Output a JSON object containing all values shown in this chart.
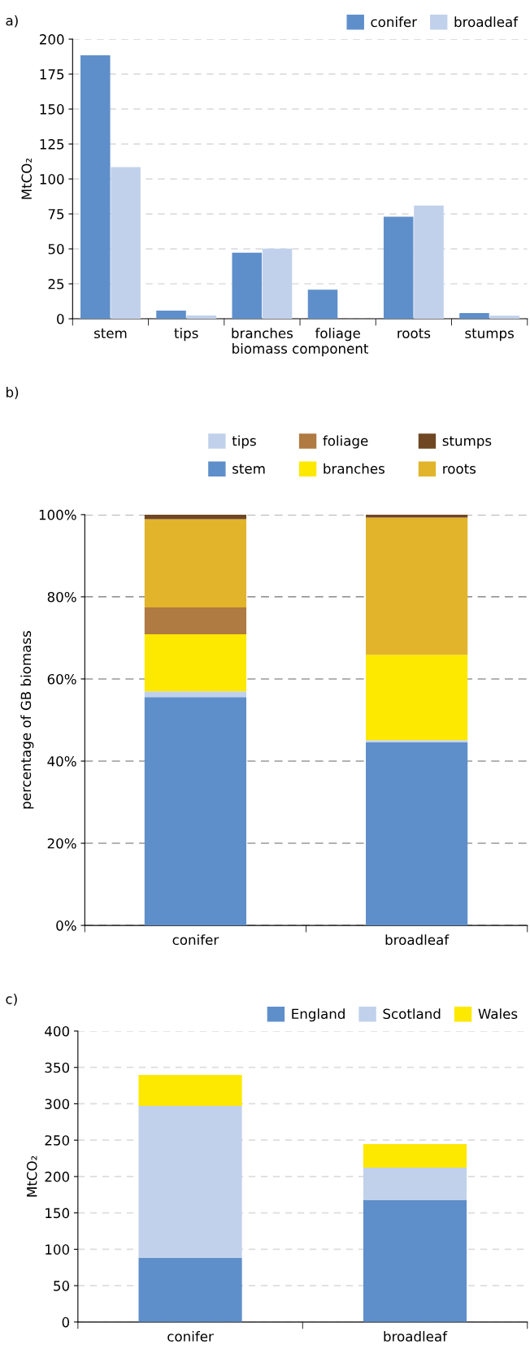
{
  "chart_data": [
    {
      "type": "bar",
      "title": "a)",
      "xlabel": "biomass component",
      "ylabel": "MtCO₂",
      "categories": [
        "stem",
        "tips",
        "branches",
        "foliage",
        "roots",
        "stumps"
      ],
      "series": [
        {
          "name": "conifer",
          "color": "#5f8fca",
          "values": [
            188.4,
            5.8,
            47.3,
            20.8,
            73,
            4.1
          ]
        },
        {
          "name": "broadleaf",
          "color": "#c1d1eb",
          "values": [
            108.4,
            2.4,
            50.2,
            0,
            81,
            2.2
          ]
        }
      ],
      "ylim": [
        0,
        200
      ],
      "yticks": [
        0,
        25,
        50,
        75,
        100,
        125,
        150,
        175,
        200
      ],
      "grid": "y",
      "legend": "top right"
    },
    {
      "type": "bar",
      "stacked": true,
      "title": "b)",
      "ylabel": "percentage of GB biomass",
      "categories": [
        "conifer",
        "broadleaf"
      ],
      "series": [
        {
          "name": "stem",
          "color": "#5f8fca",
          "values": [
            55.6,
            44.6
          ]
        },
        {
          "name": "tips",
          "color": "#c1d1eb",
          "values": [
            1.4,
            0.5
          ]
        },
        {
          "name": "branches",
          "color": "#fde800",
          "values": [
            13.9,
            20.8
          ]
        },
        {
          "name": "foliage",
          "color": "#b07a43",
          "values": [
            6.5,
            0
          ]
        },
        {
          "name": "roots",
          "color": "#e1b42c",
          "values": [
            21.5,
            33.4
          ]
        },
        {
          "name": "stumps",
          "color": "#6f4723",
          "values": [
            1.2,
            0.7
          ]
        }
      ],
      "ylim": [
        0,
        100
      ],
      "yticks": [
        {
          "value": 0,
          "label": "0%"
        },
        {
          "value": 20,
          "label": "20%"
        },
        {
          "value": 40,
          "label": "40%"
        },
        {
          "value": 60,
          "label": "60%"
        },
        {
          "value": 80,
          "label": "80%"
        },
        {
          "value": 100,
          "label": "100%"
        }
      ],
      "grid": "y",
      "legend": "top"
    },
    {
      "type": "bar",
      "stacked": true,
      "title": "c)",
      "ylabel": "MtCO₂",
      "categories": [
        "conifer",
        "broadleaf"
      ],
      "series": [
        {
          "name": "England",
          "color": "#5f8fca",
          "values": [
            88.4,
            167.4
          ]
        },
        {
          "name": "Scotland",
          "color": "#c1d1eb",
          "values": [
            208.8,
            44.7
          ]
        },
        {
          "name": "Wales",
          "color": "#fde800",
          "values": [
            42.3,
            32.6
          ]
        }
      ],
      "ylim": [
        0,
        400
      ],
      "yticks": [
        0,
        50,
        100,
        150,
        200,
        250,
        300,
        350,
        400
      ],
      "grid": "y",
      "legend": "top right"
    }
  ]
}
